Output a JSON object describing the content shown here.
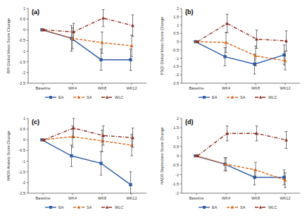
{
  "chart_data": [
    {
      "type": "line",
      "title": "(a)",
      "y_label": "BPI Global Mean Score Change",
      "categories": [
        "Baseline",
        "WK4",
        "WK8",
        "WK12"
      ],
      "ylim": [
        -2.5,
        1
      ],
      "yticks": [
        -2.5,
        -2,
        -1.5,
        -1,
        -0.5,
        0,
        0.5,
        1
      ],
      "legend": "bottom",
      "series": [
        {
          "name": "EA",
          "color": "#2e5ca8",
          "marker": "square",
          "line_style": "solid",
          "values": [
            0,
            -0.4,
            -1.4,
            -1.4
          ],
          "errors": [
            0,
            0.6,
            0.5,
            0.5
          ]
        },
        {
          "name": "SA",
          "color": "#e0661c",
          "marker": "triangle",
          "line_style": "dashed",
          "values": [
            0,
            -0.4,
            -0.6,
            -0.75
          ],
          "errors": [
            0,
            0.5,
            0.5,
            0.5
          ]
        },
        {
          "name": "WLC",
          "color": "#8e2b1c",
          "marker": "triangle",
          "line_style": "dashdot",
          "values": [
            0,
            -0.1,
            0.55,
            0.2
          ],
          "errors": [
            0,
            0.4,
            0.4,
            0.5
          ]
        }
      ]
    },
    {
      "type": "line",
      "title": "(b)",
      "y_label": "PSQI Global Mean Score Change",
      "categories": [
        "Baseline",
        "WK4",
        "WK8",
        "WK12"
      ],
      "ylim": [
        -2.5,
        2
      ],
      "yticks": [
        -2.5,
        -2,
        -1.5,
        -1,
        -0.5,
        0,
        0.5,
        1,
        1.5,
        2
      ],
      "legend": "bottom",
      "series": [
        {
          "name": "EA",
          "color": "#2e5ca8",
          "marker": "square",
          "line_style": "solid",
          "values": [
            0,
            -0.9,
            -1.35,
            -0.8
          ],
          "errors": [
            0,
            0.55,
            0.6,
            0.6
          ]
        },
        {
          "name": "SA",
          "color": "#e0661c",
          "marker": "triangle",
          "line_style": "dashed",
          "values": [
            0,
            -0.05,
            -0.85,
            -1.15
          ],
          "errors": [
            0,
            0.6,
            0.6,
            0.55
          ]
        },
        {
          "name": "WLC",
          "color": "#8e2b1c",
          "marker": "triangle",
          "line_style": "dashdot",
          "values": [
            0,
            1.1,
            0.15,
            0.05
          ],
          "errors": [
            0,
            0.55,
            0.55,
            0.6
          ]
        }
      ]
    },
    {
      "type": "line",
      "title": "(c)",
      "y_label": "HADS Anxiety Score Change",
      "categories": [
        "Baseline",
        "WK4",
        "WK8",
        "WK12"
      ],
      "ylim": [
        -2.5,
        1
      ],
      "yticks": [
        -2.5,
        -2,
        -1.5,
        -1,
        -0.5,
        0,
        0.5,
        1
      ],
      "legend": "bottom",
      "series": [
        {
          "name": "EA",
          "color": "#2e5ca8",
          "marker": "square",
          "line_style": "solid",
          "values": [
            0,
            -0.75,
            -1.1,
            -2.1
          ],
          "errors": [
            0,
            0.5,
            0.55,
            0.6
          ]
        },
        {
          "name": "SA",
          "color": "#e0661c",
          "marker": "triangle",
          "line_style": "dashed",
          "values": [
            0,
            0.15,
            -0.05,
            -0.25
          ],
          "errors": [
            0,
            0.5,
            0.5,
            0.5
          ]
        },
        {
          "name": "WLC",
          "color": "#8e2b1c",
          "marker": "triangle",
          "line_style": "dashdot",
          "values": [
            0,
            0.55,
            0.2,
            0.1
          ],
          "errors": [
            0,
            0.45,
            0.45,
            0.45
          ]
        }
      ]
    },
    {
      "type": "line",
      "title": "(d)",
      "y_label": "HADS Depression Score Change",
      "categories": [
        "Baseline",
        "WK4",
        "WK8",
        "WK12"
      ],
      "ylim": [
        -2,
        2
      ],
      "yticks": [
        -2,
        -1.5,
        -1,
        -0.5,
        0,
        0.5,
        1,
        1.5,
        2
      ],
      "legend": "bottom",
      "series": [
        {
          "name": "EA",
          "color": "#2e5ca8",
          "marker": "square",
          "line_style": "solid",
          "values": [
            0,
            -0.45,
            -1.15,
            -1.15
          ],
          "errors": [
            0,
            0.35,
            0.4,
            0.4
          ]
        },
        {
          "name": "SA",
          "color": "#e0661c",
          "marker": "triangle",
          "line_style": "dashed",
          "values": [
            0,
            -0.45,
            -0.75,
            -1.3
          ],
          "errors": [
            0,
            0.35,
            0.4,
            0.4
          ]
        },
        {
          "name": "WLC",
          "color": "#8e2b1c",
          "marker": "triangle",
          "line_style": "dashdot",
          "values": [
            0,
            1.2,
            1.2,
            0.85
          ],
          "errors": [
            0,
            0.4,
            0.4,
            0.45
          ]
        }
      ]
    }
  ]
}
